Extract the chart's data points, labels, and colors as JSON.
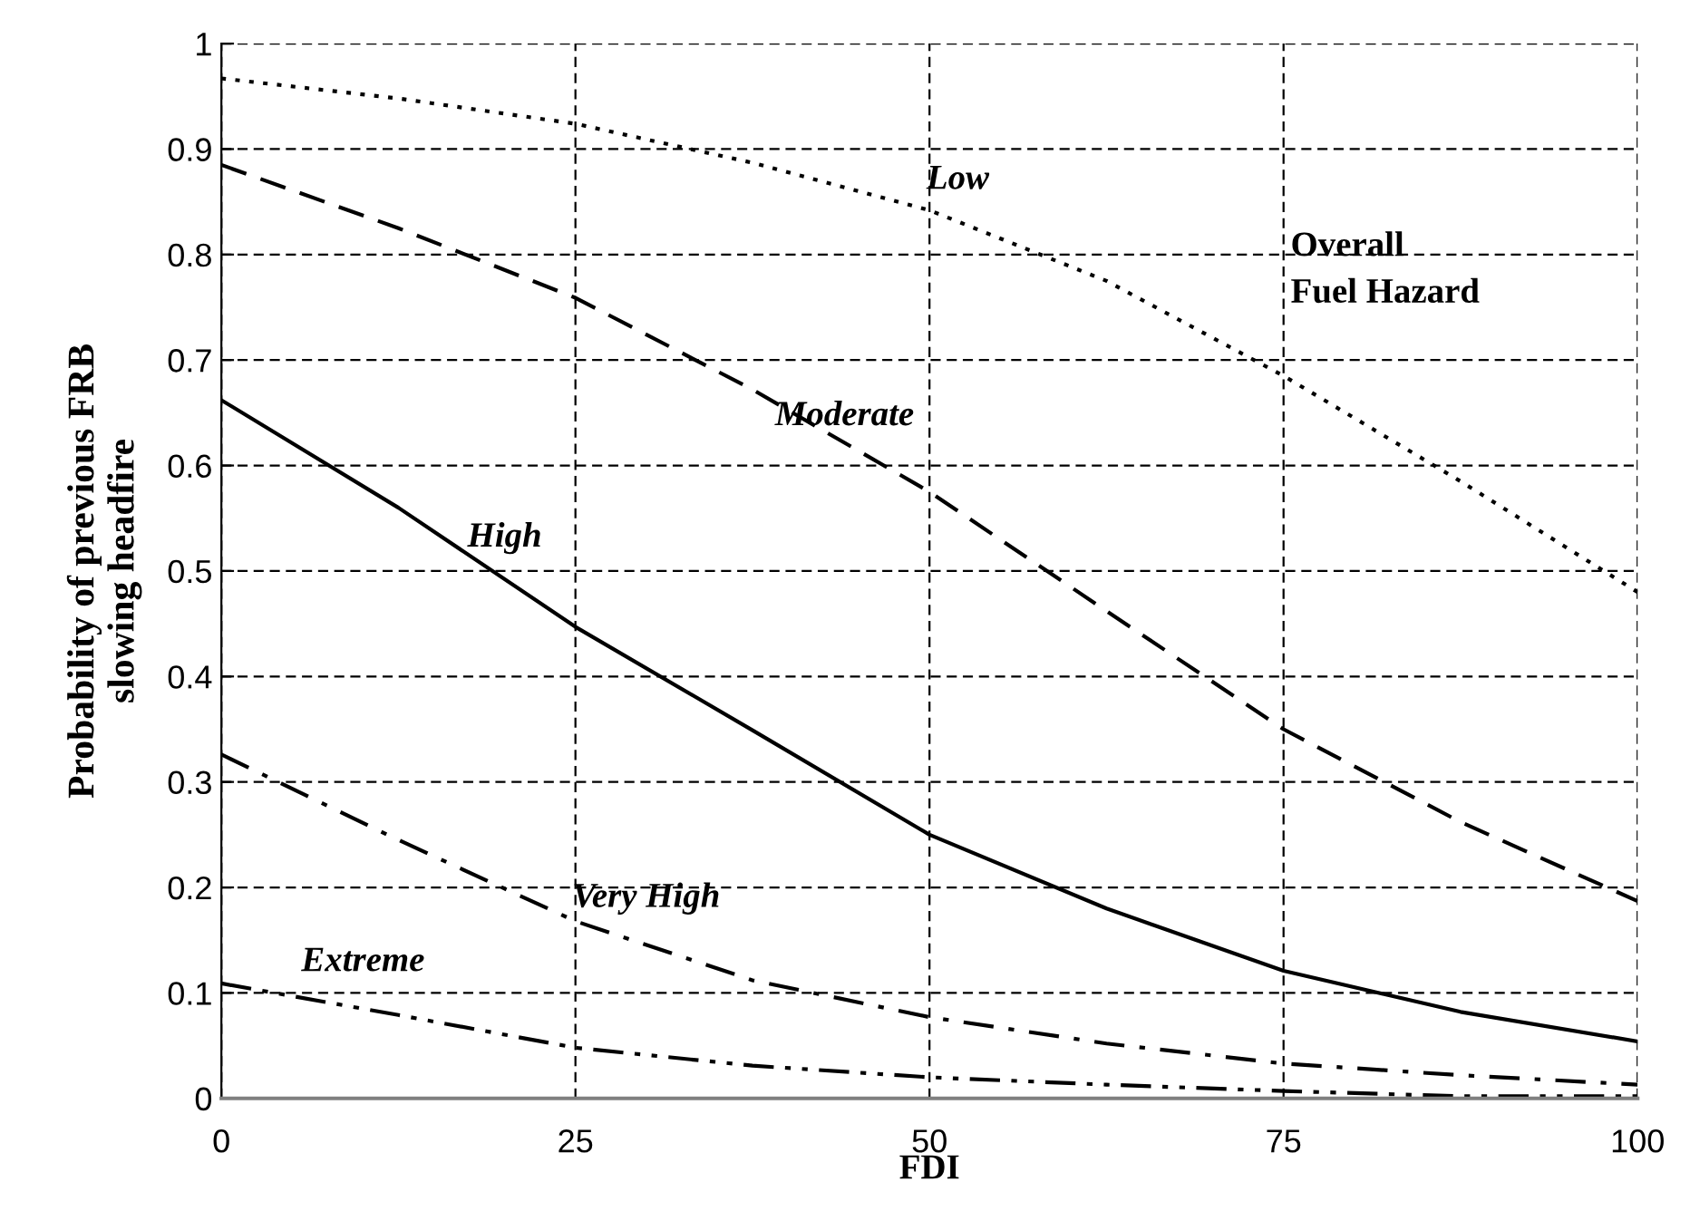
{
  "chart_data": {
    "type": "line",
    "xlabel": "FDI",
    "ylabel": "Probability of previous FRB\nslowing headfire",
    "x": [
      0,
      12.5,
      25,
      37.5,
      50,
      62.5,
      75,
      87.5,
      100
    ],
    "series": [
      {
        "name": "Low",
        "color": "#000000",
        "line_style": "dotted",
        "values": [
          0.967,
          0.948,
          0.924,
          0.887,
          0.842,
          0.775,
          0.685,
          0.585,
          0.48
        ]
      },
      {
        "name": "Moderate",
        "color": "#000000",
        "line_style": "dashed",
        "values": [
          0.885,
          0.825,
          0.759,
          0.672,
          0.575,
          0.462,
          0.35,
          0.262,
          0.187
        ]
      },
      {
        "name": "High",
        "color": "#000000",
        "line_style": "solid",
        "values": [
          0.662,
          0.56,
          0.447,
          0.349,
          0.25,
          0.18,
          0.121,
          0.082,
          0.054
        ]
      },
      {
        "name": "Very High",
        "color": "#000000",
        "line_style": "dashdot",
        "values": [
          0.326,
          0.245,
          0.168,
          0.112,
          0.077,
          0.052,
          0.033,
          0.022,
          0.013
        ]
      },
      {
        "name": "Extreme",
        "color": "#000000",
        "line_style": "dashdotdot",
        "values": [
          0.109,
          0.079,
          0.048,
          0.031,
          0.02,
          0.013,
          0.007,
          0.002,
          0.002
        ]
      }
    ],
    "annotations": [
      "Overall\nFuel Hazard"
    ],
    "xlim": [
      0,
      100
    ],
    "xticks": [
      0,
      25,
      50,
      75,
      100
    ],
    "ylim": [
      0,
      1
    ],
    "yticks": [
      0,
      0.1,
      0.2,
      0.3,
      0.4,
      0.5,
      0.6,
      0.7,
      0.8,
      0.9,
      1
    ],
    "grid": true,
    "legend": false,
    "marker": "none"
  }
}
